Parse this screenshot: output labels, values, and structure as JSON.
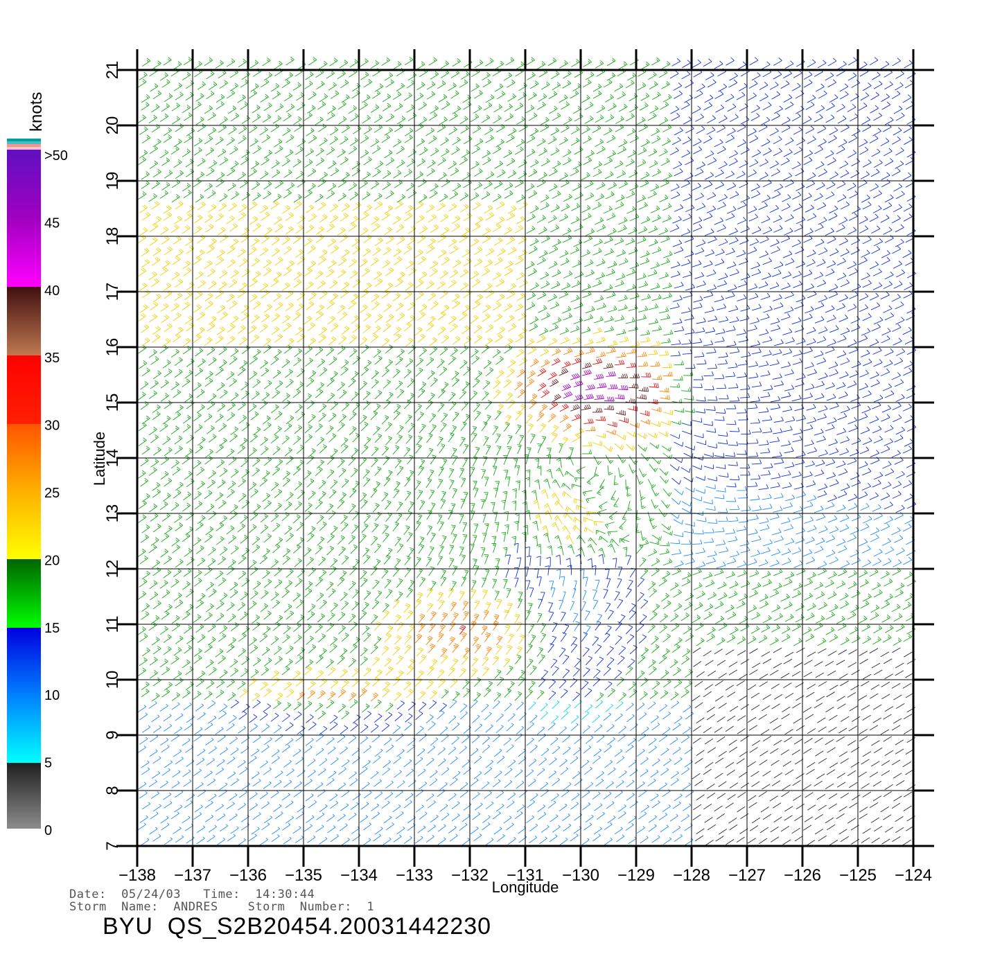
{
  "chart_data": {
    "type": "scatter",
    "subtype": "wind-barb-field",
    "xlabel": "Longitude",
    "ylabel": "Latitude",
    "xlim": [
      -138,
      -124
    ],
    "ylim": [
      7,
      21
    ],
    "x_ticks": [
      "-138",
      "-137",
      "-136",
      "-135",
      "-134",
      "-133",
      "-132",
      "-131",
      "-130",
      "-129",
      "-128",
      "-127",
      "-126",
      "-125",
      "-124"
    ],
    "y_ticks": [
      "7",
      "8",
      "9",
      "10",
      "11",
      "12",
      "13",
      "14",
      "15",
      "16",
      "17",
      "18",
      "19",
      "20",
      "21"
    ],
    "grid": true,
    "colorbar": {
      "unit": "knots",
      "range": [
        0,
        50
      ],
      "tick_labels": [
        ">50",
        "45",
        "40",
        "35",
        "30",
        "25",
        "20",
        "15",
        "10",
        "5",
        "0"
      ],
      "bands": [
        {
          "range": [
            0,
            5
          ],
          "from": "#8c8c8c",
          "to": "#202020"
        },
        {
          "range": [
            5,
            15
          ],
          "from": "#00ffff",
          "to": "#0000e0"
        },
        {
          "range": [
            15,
            20
          ],
          "from": "#00ff00",
          "to": "#006400"
        },
        {
          "range": [
            20,
            30
          ],
          "from": "#ffff00",
          "to": "#ff5500"
        },
        {
          "range": [
            30,
            35
          ],
          "from": "#ff2000",
          "to": "#ff0000"
        },
        {
          "range": [
            35,
            40
          ],
          "from": "#c07850",
          "to": "#401010"
        },
        {
          "range": [
            40,
            50
          ],
          "from": "#ff00ff",
          "to": "#6010c0"
        }
      ],
      "top_caps": [
        "#00a0a0",
        "#40c0c0",
        "#ff9090",
        "#ffc0d0"
      ]
    },
    "storm_center": {
      "lon": -130,
      "lat": 14
    },
    "wind_regions": [
      {
        "area": "north / northwest trade winds",
        "lon": [
          -138,
          -128
        ],
        "lat": [
          16,
          21
        ],
        "speed_knots": [
          15,
          22
        ]
      },
      {
        "area": "northeast",
        "lon": [
          -128,
          -124
        ],
        "lat": [
          12,
          21
        ],
        "speed_knots": [
          8,
          15
        ]
      },
      {
        "area": "storm core (north side)",
        "lon": [
          -131.5,
          -128.5
        ],
        "lat": [
          14.5,
          16
        ],
        "speed_knots": [
          30,
          45
        ]
      },
      {
        "area": "southwest feeder band",
        "lon": [
          -136,
          -131
        ],
        "lat": [
          8.5,
          11.5
        ],
        "speed_knots": [
          22,
          32
        ]
      },
      {
        "area": "southeast light winds",
        "lon": [
          -128,
          -124
        ],
        "lat": [
          7,
          10
        ],
        "speed_knots": [
          0,
          5
        ]
      }
    ]
  },
  "meta": {
    "date_line": "Date:  05/24/03   Time:  14:30:44",
    "storm_line": "Storm  Name:  ANDRES    Storm  Number:  1",
    "product_title": "BYU  QS_S2B20454.20031442230"
  }
}
